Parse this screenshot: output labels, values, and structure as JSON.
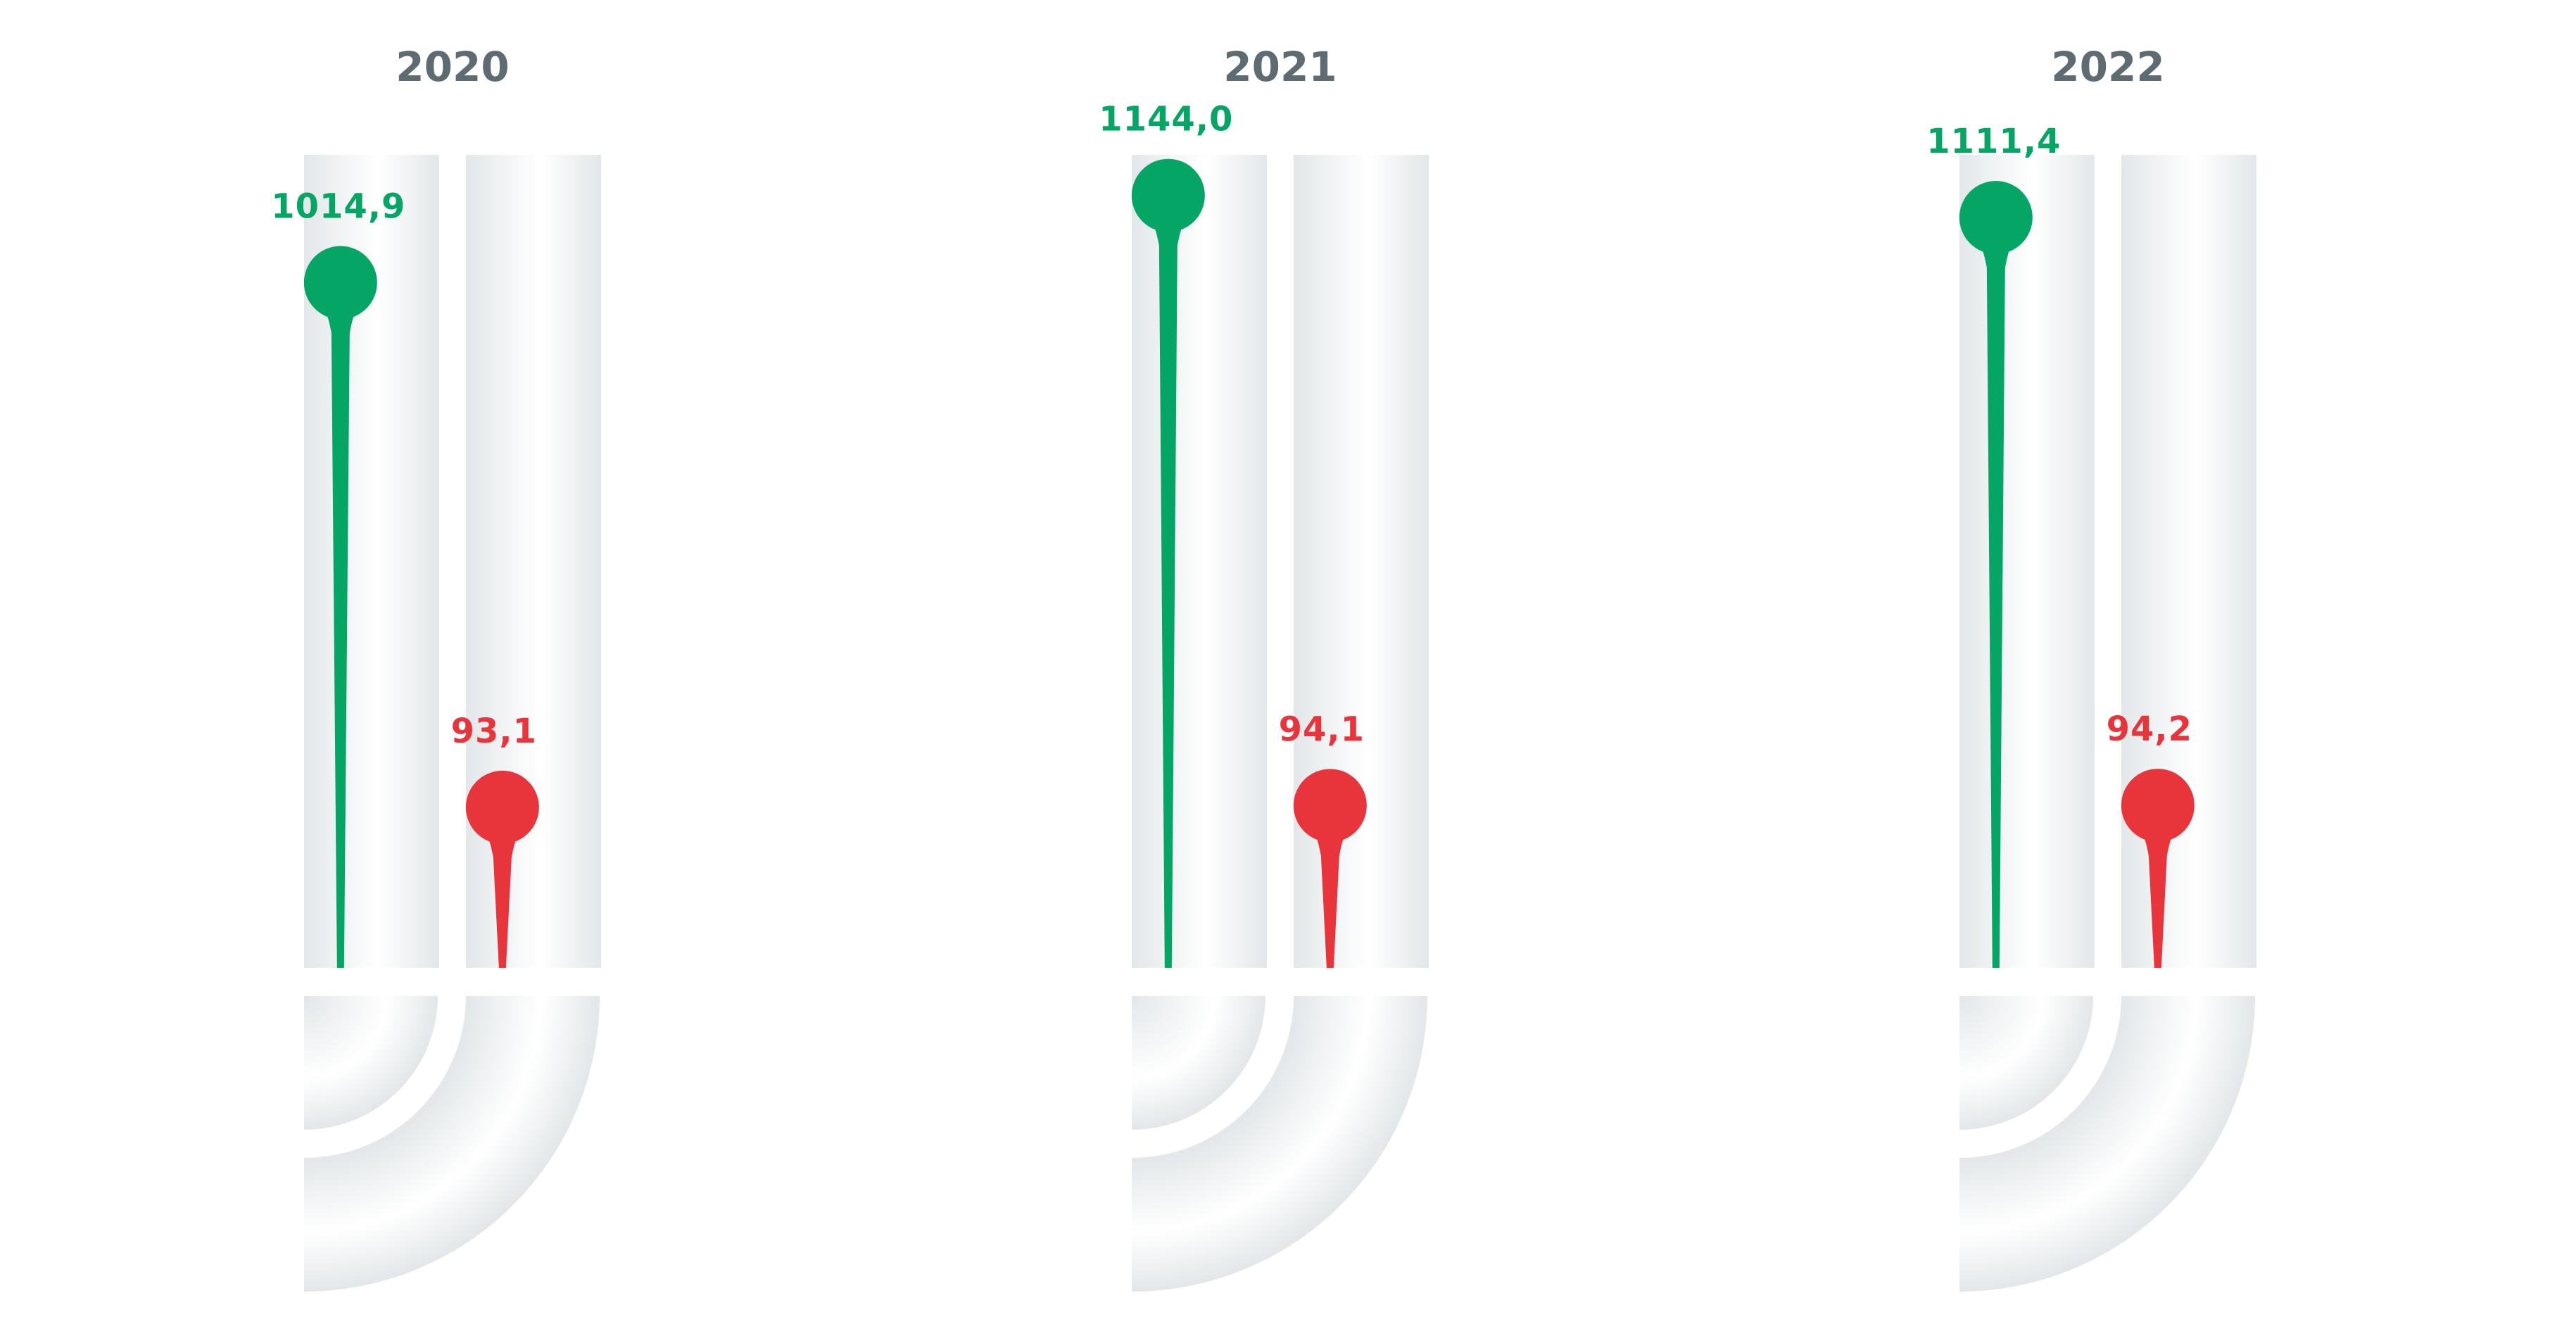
{
  "chart_data": {
    "type": "lollipop",
    "title": "",
    "categories": [
      "2020",
      "2021",
      "2022"
    ],
    "series": [
      {
        "color": "#05a566",
        "values": [
          1014.9,
          1144.0,
          1111.4
        ],
        "labels": [
          "1014,9",
          "1144,0",
          "1111,4"
        ]
      },
      {
        "color": "#e8353b",
        "values": [
          93.1,
          94.1,
          94.2
        ],
        "labels": [
          "93,1",
          "94,1",
          "94,2"
        ]
      }
    ],
    "grid": false,
    "legend": "none"
  },
  "colors": {
    "year_label": "#5f6b73",
    "track_edge": "#e2e6e8",
    "track_center": "#ffffff"
  }
}
